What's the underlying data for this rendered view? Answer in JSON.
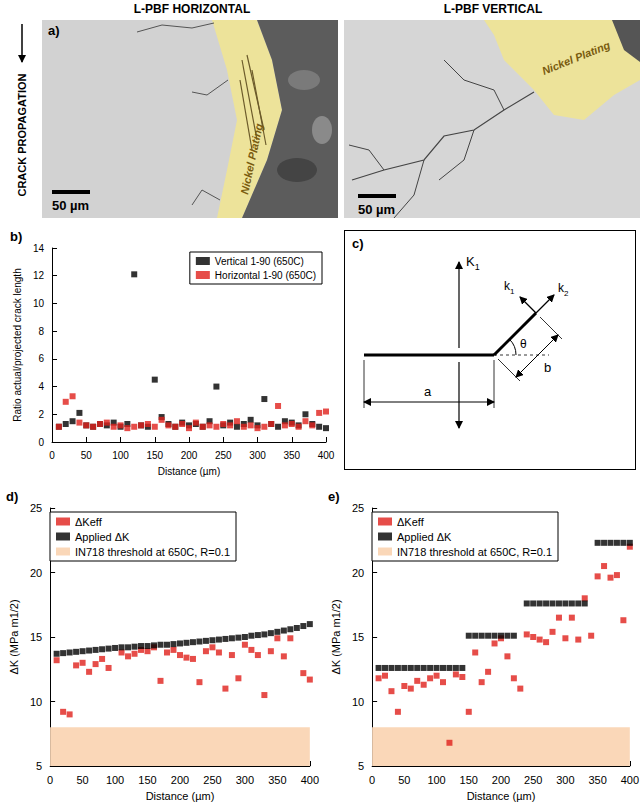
{
  "panel_a": {
    "label": "a)",
    "titles": [
      "L-PBF HORIZONTAL",
      "L-PBF VERTICAL"
    ],
    "side_label": "CRACK PROPAGATION",
    "annotations": [
      "Nickel Plating",
      "Nickel Plating"
    ],
    "scale_bars": [
      "50 µm",
      "50 µm"
    ]
  },
  "panel_c": {
    "label": "c)",
    "load": "K1",
    "tip_factors": [
      "k1",
      "k2"
    ],
    "angle": "θ",
    "crack_length": "a",
    "kink_length": "b"
  },
  "chart_data": [
    {
      "label": "b)",
      "type": "scatter",
      "x_label": "Distance (µm)",
      "y_label": "Ratio actual/projected crack length",
      "xlim": [
        0,
        400
      ],
      "xticks": [
        0,
        50,
        100,
        150,
        200,
        250,
        300,
        350,
        400
      ],
      "ylim": [
        0,
        14
      ],
      "yticks": [
        0,
        2,
        4,
        6,
        8,
        10,
        12,
        14
      ],
      "grid": false,
      "legend": "top-right",
      "series": [
        {
          "name": "Vertical 1-90 (650C)",
          "color": "#000000",
          "marker": "square",
          "x": [
            10,
            20,
            30,
            40,
            50,
            60,
            70,
            80,
            90,
            100,
            110,
            120,
            130,
            140,
            150,
            160,
            170,
            180,
            190,
            200,
            210,
            220,
            230,
            240,
            250,
            260,
            270,
            280,
            290,
            300,
            310,
            320,
            330,
            340,
            350,
            360,
            370,
            380,
            390,
            400
          ],
          "values": [
            1.1,
            1.3,
            1.5,
            2.1,
            1.2,
            1.1,
            1.3,
            1.2,
            1.4,
            1.1,
            1.3,
            12.1,
            1.2,
            1.1,
            4.5,
            1.8,
            1.3,
            1.1,
            1.4,
            1.2,
            1.3,
            1.1,
            1.5,
            4.0,
            1.2,
            1.4,
            1.1,
            1.3,
            1.6,
            1.2,
            3.1,
            1.3,
            1.1,
            1.5,
            1.4,
            1.2,
            2.0,
            1.3,
            1.1,
            1.0
          ]
        },
        {
          "name": "Horizontal 1-90 (650C)",
          "color": "#e0201b",
          "marker": "square",
          "x": [
            10,
            20,
            30,
            40,
            50,
            60,
            70,
            80,
            90,
            100,
            110,
            120,
            130,
            140,
            150,
            160,
            170,
            180,
            190,
            200,
            210,
            220,
            230,
            240,
            250,
            260,
            270,
            280,
            290,
            300,
            310,
            320,
            330,
            340,
            350,
            360,
            370,
            380,
            390,
            400
          ],
          "values": [
            1.1,
            2.9,
            3.3,
            1.4,
            1.2,
            1.1,
            1.3,
            1.4,
            1.1,
            1.2,
            1.0,
            1.1,
            1.2,
            1.3,
            1.1,
            1.6,
            1.2,
            1.1,
            1.3,
            1.0,
            1.4,
            1.1,
            1.2,
            1.1,
            1.3,
            1.2,
            1.5,
            1.1,
            1.2,
            1.0,
            1.1,
            1.3,
            2.6,
            1.2,
            1.3,
            1.1,
            1.5,
            1.2,
            2.1,
            2.2
          ]
        }
      ]
    },
    {
      "label": "d)",
      "type": "scatter",
      "x_label": "Distance (µm)",
      "y_label": "ΔK (MPa m1/2)",
      "xlim": [
        0,
        400
      ],
      "xticks": [
        0,
        50,
        100,
        150,
        200,
        250,
        300,
        350,
        400
      ],
      "ylim": [
        5,
        25
      ],
      "yticks": [
        5,
        10,
        15,
        20,
        25
      ],
      "grid": false,
      "legend": "top-left",
      "series": [
        {
          "name": "ΔKeff",
          "color": "#e0201b",
          "marker": "square",
          "x": [
            10,
            20,
            30,
            40,
            50,
            60,
            70,
            80,
            90,
            110,
            120,
            130,
            140,
            150,
            160,
            170,
            180,
            190,
            200,
            210,
            220,
            230,
            240,
            250,
            260,
            270,
            280,
            290,
            300,
            310,
            320,
            330,
            340,
            350,
            360,
            370,
            390,
            400
          ],
          "values": [
            13.2,
            9.2,
            9.0,
            12.8,
            13.0,
            12.3,
            12.9,
            13.3,
            12.6,
            13.8,
            13.5,
            13.7,
            14.0,
            13.9,
            14.2,
            11.6,
            13.8,
            14.0,
            13.6,
            13.4,
            13.3,
            11.5,
            13.9,
            14.2,
            13.8,
            11.0,
            13.6,
            11.8,
            14.4,
            14.0,
            13.6,
            10.5,
            13.9,
            14.9,
            13.5,
            14.9,
            12.2,
            11.7
          ]
        },
        {
          "name": "Applied ΔK",
          "color": "#000000",
          "marker": "square",
          "x": [
            10,
            20,
            30,
            40,
            50,
            60,
            70,
            80,
            90,
            100,
            110,
            120,
            130,
            140,
            150,
            160,
            170,
            180,
            190,
            200,
            210,
            220,
            230,
            240,
            250,
            260,
            270,
            280,
            290,
            300,
            310,
            320,
            330,
            340,
            350,
            360,
            370,
            380,
            390,
            400
          ],
          "values": [
            13.7,
            13.75,
            13.8,
            13.85,
            13.9,
            13.95,
            14.0,
            14.05,
            14.1,
            14.15,
            14.2,
            14.2,
            14.25,
            14.3,
            14.3,
            14.35,
            14.4,
            14.4,
            14.45,
            14.5,
            14.55,
            14.6,
            14.65,
            14.7,
            14.75,
            14.8,
            14.85,
            14.9,
            14.95,
            15.0,
            15.1,
            15.15,
            15.2,
            15.3,
            15.4,
            15.5,
            15.6,
            15.7,
            15.85,
            16.0
          ]
        },
        {
          "name": "IN718 threshold at 650C, R=0.1",
          "type": "area",
          "color": "#fad7b8",
          "x": [
            0,
            400
          ],
          "values": [
            8,
            8
          ]
        }
      ]
    },
    {
      "label": "e)",
      "type": "scatter",
      "x_label": "Distance (µm)",
      "y_label": "ΔK (MPa m1/2)",
      "xlim": [
        0,
        400
      ],
      "xticks": [
        0,
        50,
        100,
        150,
        200,
        250,
        300,
        350,
        400
      ],
      "ylim": [
        5,
        25
      ],
      "yticks": [
        5,
        10,
        15,
        20,
        25
      ],
      "grid": false,
      "legend": "top-left",
      "series": [
        {
          "name": "ΔKeff",
          "color": "#e0201b",
          "marker": "square",
          "x": [
            10,
            20,
            30,
            40,
            50,
            60,
            70,
            80,
            90,
            100,
            110,
            120,
            130,
            140,
            150,
            160,
            170,
            180,
            190,
            200,
            210,
            220,
            230,
            240,
            250,
            260,
            270,
            280,
            290,
            300,
            310,
            320,
            330,
            340,
            350,
            360,
            370,
            380,
            390,
            400
          ],
          "values": [
            11.8,
            12.0,
            10.8,
            9.2,
            11.2,
            11.0,
            11.6,
            11.3,
            11.8,
            12.0,
            11.5,
            6.8,
            12.1,
            11.9,
            9.2,
            13.8,
            11.5,
            12.3,
            14.5,
            14.9,
            13.5,
            11.8,
            11.0,
            15.2,
            15.0,
            14.8,
            14.6,
            15.4,
            16.5,
            14.9,
            16.5,
            14.8,
            18.0,
            15.1,
            19.7,
            20.5,
            19.6,
            19.8,
            16.3,
            22.0
          ]
        },
        {
          "name": "Applied ΔK",
          "color": "#000000",
          "marker": "square",
          "x": [
            10,
            20,
            30,
            40,
            50,
            60,
            70,
            80,
            90,
            100,
            110,
            120,
            130,
            140,
            150,
            160,
            170,
            180,
            190,
            200,
            210,
            220,
            240,
            250,
            260,
            270,
            280,
            290,
            300,
            310,
            320,
            330,
            350,
            360,
            370,
            380,
            390,
            400
          ],
          "values": [
            12.6,
            12.6,
            12.6,
            12.6,
            12.6,
            12.6,
            12.6,
            12.6,
            12.6,
            12.6,
            12.6,
            12.6,
            12.6,
            12.6,
            15.1,
            15.1,
            15.1,
            15.1,
            15.1,
            15.1,
            15.1,
            15.1,
            17.6,
            17.6,
            17.6,
            17.6,
            17.6,
            17.6,
            17.6,
            17.6,
            17.6,
            17.6,
            22.3,
            22.3,
            22.3,
            22.3,
            22.3,
            22.3
          ]
        },
        {
          "name": "IN718 threshold at 650C, R=0.1",
          "type": "area",
          "color": "#fad7b8",
          "x": [
            0,
            400
          ],
          "values": [
            8,
            8
          ]
        }
      ]
    }
  ]
}
